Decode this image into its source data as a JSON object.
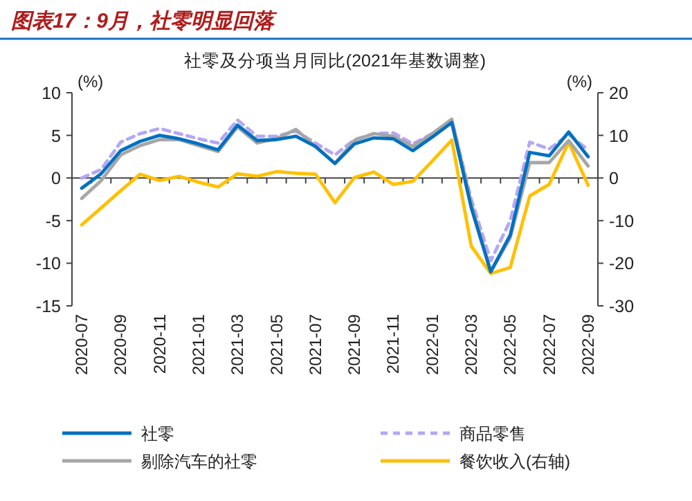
{
  "chart_data": {
    "type": "line",
    "title": "图表17：9月，社零明显回落",
    "subtitle": "社零及分项当月同比(2021年基数调整)",
    "ylabel": "(%)",
    "y2label": "(%)",
    "categories": [
      "2020-07",
      null,
      "2020-09",
      null,
      "2020-11",
      null,
      "2021-01",
      null,
      "2021-03",
      null,
      "2021-05",
      null,
      "2021-07",
      null,
      "2021-09",
      null,
      "2021-11",
      null,
      "2022-01",
      null,
      "2022-03",
      null,
      "2022-05",
      null,
      "2022-07",
      null,
      "2022-09"
    ],
    "ylim": [
      -15,
      10
    ],
    "yticks": [
      -15,
      -10,
      -5,
      0,
      5,
      10
    ],
    "y2lim": [
      -30,
      20
    ],
    "y2ticks": [
      -30,
      -20,
      -10,
      0,
      10,
      20
    ],
    "legend": "bottom",
    "marker": "none",
    "series": [
      {
        "name": "社零",
        "color": "#0070c0",
        "line_style": "solid",
        "values": [
          -1.2,
          0.5,
          3.2,
          4.3,
          5.0,
          4.6,
          4.0,
          3.3,
          6.2,
          4.4,
          4.5,
          4.9,
          3.7,
          1.7,
          4.0,
          4.7,
          4.6,
          3.2,
          4.8,
          6.5,
          -3.5,
          -11.0,
          -6.7,
          3.0,
          2.6,
          5.4,
          2.5
        ]
      },
      {
        "name": "商品零售",
        "color": "#b4a7f5",
        "line_style": "dashed",
        "values": [
          0.0,
          1.0,
          4.2,
          5.2,
          5.8,
          5.2,
          4.6,
          4.1,
          6.8,
          4.9,
          4.9,
          5.5,
          4.1,
          2.7,
          4.5,
          5.2,
          5.3,
          4.0,
          5.2,
          6.8,
          -2.5,
          -9.7,
          -5.0,
          4.2,
          3.4,
          5.1,
          3.3
        ]
      },
      {
        "name": "剔除汽车的社零",
        "color": "#a6a6a6",
        "line_style": "solid",
        "values": [
          -2.4,
          -0.3,
          2.7,
          3.8,
          4.5,
          4.5,
          3.8,
          3.1,
          6.0,
          4.1,
          4.6,
          5.7,
          3.7,
          1.7,
          4.4,
          5.2,
          4.9,
          3.7,
          5.2,
          6.9,
          -3.0,
          -11.0,
          -7.0,
          1.8,
          1.8,
          4.4,
          1.4
        ]
      },
      {
        "name": "餐饮收入(右轴)",
        "color": "#ffc000",
        "line_style": "solid",
        "axis": "y2",
        "values": [
          -11.0,
          -7.0,
          -3.0,
          0.9,
          -0.6,
          0.4,
          -1.0,
          -2.1,
          1.0,
          0.4,
          1.5,
          1.1,
          0.9,
          -5.8,
          0.1,
          1.4,
          -1.5,
          -0.8,
          4.0,
          8.9,
          -16.0,
          -22.4,
          -21.0,
          -4.2,
          -1.5,
          8.4,
          -1.7
        ]
      }
    ]
  }
}
